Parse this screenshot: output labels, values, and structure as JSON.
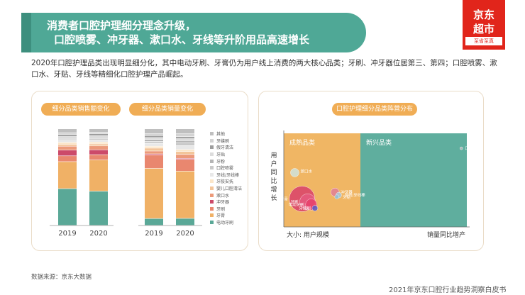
{
  "header": {
    "title_line1": "消费者口腔护理细分理念升级，",
    "title_line2": "口腔喷雾、冲牙器、漱口水、牙线等升阶用品高速增长"
  },
  "logo": {
    "brand": "京东",
    "product": "超市",
    "slogan": "至省至真"
  },
  "intro": "2020年口腔护理品类出现明显细分化，其中电动牙刷、牙膏仍为用户线上消费的两大核心品类；牙刷、冲牙器位居第三、第四；口腔喷雾、漱口水、牙贴、牙线等精细化口腔护理产品崛起。",
  "left_panel": {
    "pill_sales": "细分品类销售额变化",
    "pill_volume": "细分品类销量变化"
  },
  "right_panel": {
    "pill": "口腔护理细分品类阵营分布"
  },
  "footer": {
    "source": "数据来源：京东大数据",
    "report": "2021年京东口腔行业趋势洞察白皮书"
  },
  "colors": {
    "banner": "#4fa896",
    "accent": "#f0ad55",
    "brand_red": "#e1251b",
    "mature": "#f0b664",
    "emerging": "#5fae9e"
  },
  "chart_data": [
    {
      "type": "bar",
      "stacked": true,
      "title": "细分品类销售额变化",
      "categories": [
        "2019",
        "2020"
      ],
      "series": [
        {
          "name": "电动牙刷",
          "color": "#5aa897",
          "values": [
            38,
            35
          ]
        },
        {
          "name": "牙膏",
          "color": "#f0b166",
          "values": [
            28,
            32
          ]
        },
        {
          "name": "牙刷",
          "color": "#e9876f",
          "values": [
            6,
            5.5
          ]
        },
        {
          "name": "冲牙器",
          "color": "#cc4a6a",
          "values": [
            6,
            5
          ]
        },
        {
          "name": "漱口水",
          "color": "#ec9a7a",
          "values": [
            4,
            4
          ]
        },
        {
          "name": "婴儿口腔清洁",
          "color": "#f3c59a",
          "values": [
            2,
            2
          ]
        },
        {
          "name": "牙胶安抚",
          "color": "#fbe6c9",
          "values": [
            2,
            2
          ]
        },
        {
          "name": "牙线/牙线棒",
          "color": "#e8e8e8",
          "values": [
            2,
            2
          ]
        },
        {
          "name": "口腔喷雾",
          "color": "#c9c9c9",
          "values": [
            1,
            1.5
          ]
        },
        {
          "name": "牙粉",
          "color": "#b5b5b5",
          "values": [
            1,
            1
          ]
        },
        {
          "name": "牙贴",
          "color": "#dcdcdc",
          "values": [
            2,
            2
          ]
        },
        {
          "name": "假牙清洁",
          "color": "#9d9d9d",
          "values": [
            2,
            2
          ]
        },
        {
          "name": "牙缝刷",
          "color": "#d3d3d3",
          "values": [
            2,
            1.5
          ]
        },
        {
          "name": "其他",
          "color": "#bfbfbf",
          "values": [
            4,
            3.5
          ]
        }
      ]
    },
    {
      "type": "bar",
      "stacked": true,
      "title": "细分品类销量变化",
      "categories": [
        "2019",
        "2020"
      ],
      "series": [
        {
          "name": "电动牙刷",
          "values": [
            7,
            7
          ]
        },
        {
          "name": "牙膏",
          "values": [
            52,
            48
          ]
        },
        {
          "name": "牙刷",
          "values": [
            14,
            12
          ]
        },
        {
          "name": "冲牙器",
          "values": [
            1,
            1
          ]
        },
        {
          "name": "漱口水",
          "values": [
            3,
            4
          ]
        },
        {
          "name": "婴儿口腔清洁",
          "values": [
            3,
            3
          ]
        },
        {
          "name": "牙胶安抚",
          "values": [
            2,
            2
          ]
        },
        {
          "name": "牙线/牙线棒",
          "values": [
            3,
            4
          ]
        },
        {
          "name": "口腔喷雾",
          "values": [
            2,
            3
          ]
        },
        {
          "name": "牙粉",
          "values": [
            2,
            2
          ]
        },
        {
          "name": "牙贴",
          "values": [
            2,
            2
          ]
        },
        {
          "name": "假牙清洁",
          "values": [
            2,
            2
          ]
        },
        {
          "name": "牙缝刷",
          "values": [
            2,
            3
          ]
        },
        {
          "name": "其他",
          "values": [
            5,
            5
          ]
        }
      ]
    },
    {
      "type": "scatter",
      "title": "口腔护理细分品类阵营分布",
      "xlabel": "销量同比增产",
      "ylabel": "用户同比增长",
      "size_label": "大小: 用户规模",
      "quadrants": [
        "成熟品类",
        "新兴品类"
      ],
      "points": [
        {
          "name": "口腔喷雾",
          "x": 0.97,
          "y": 0.84,
          "size": 2,
          "color": "#b9bcbf"
        },
        {
          "name": "冲牙器",
          "x": 0.28,
          "y": 0.37,
          "size": 6,
          "color": "#e07f97"
        },
        {
          "name": "牙线/牙线棒",
          "x": 0.3,
          "y": 0.34,
          "size": 4,
          "color": "#a9c7d9"
        },
        {
          "name": "牙贴",
          "x": 0.29,
          "y": 0.32,
          "size": 3,
          "color": "#8fbfd7"
        },
        {
          "name": "牙膏",
          "x": 0.1,
          "y": 0.3,
          "size": 18,
          "color": "#d9416a"
        },
        {
          "name": "牙刷",
          "x": 0.13,
          "y": 0.27,
          "size": 11,
          "color": "#e55b80"
        },
        {
          "name": "电动牙刷",
          "x": 0.15,
          "y": 0.24,
          "size": 8,
          "color": "#e7416c"
        },
        {
          "name": "牙缝刷",
          "x": 0.17,
          "y": 0.2,
          "size": 4,
          "color": "#5b58c7"
        },
        {
          "name": "漱口水",
          "x": 0.06,
          "y": 0.58,
          "size": 6,
          "color": "#cfe3dc"
        }
      ],
      "labels": {
        "电动牙刷": "电动牙刷",
        "牙膏": "牙膏",
        "牙刷": "牙刷"
      }
    }
  ]
}
